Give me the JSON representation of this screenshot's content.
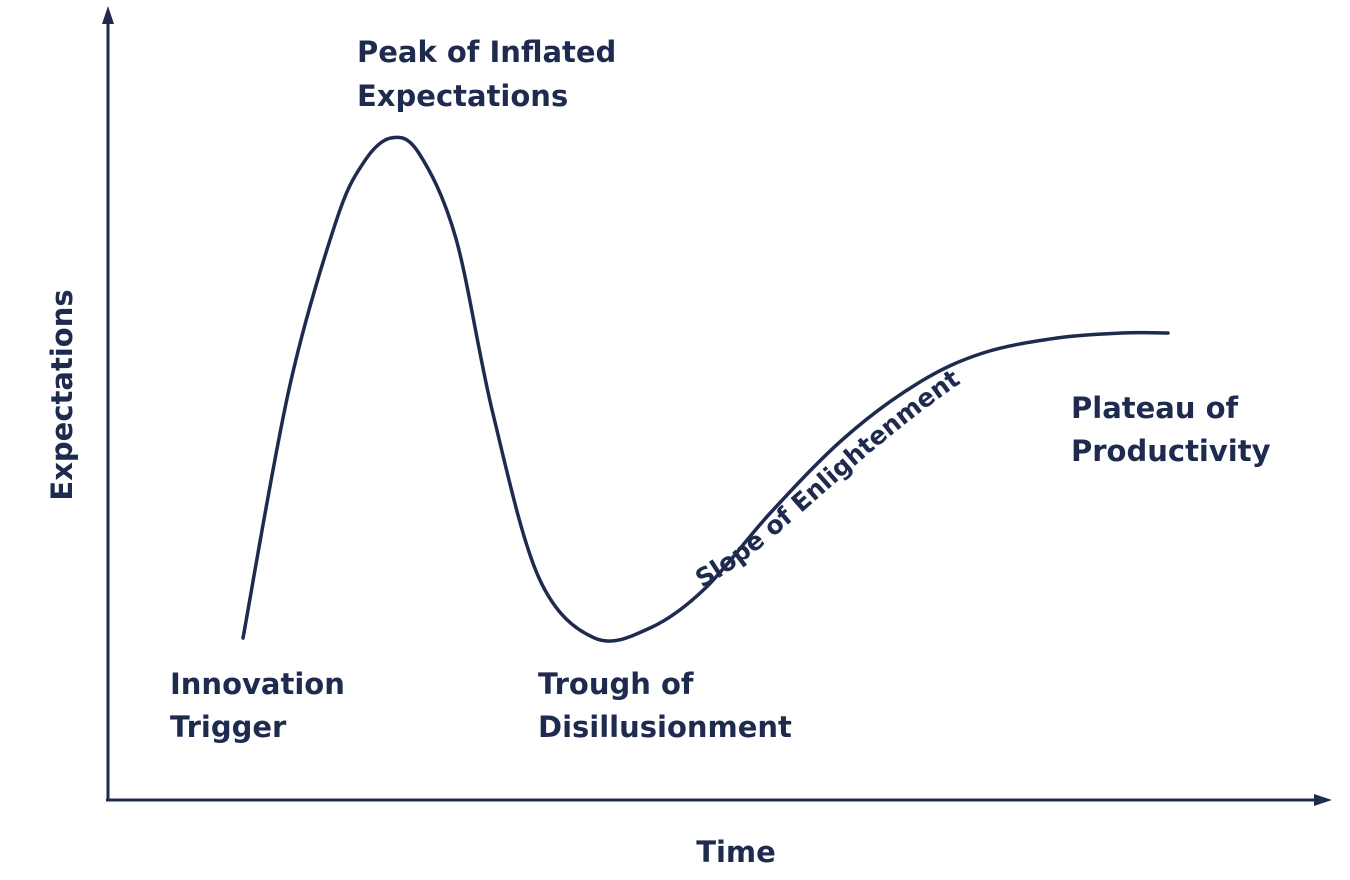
{
  "colors": {
    "ink": "#1e2b4f",
    "background": "#ffffff"
  },
  "chart_data": {
    "type": "line",
    "xlabel": "Time",
    "ylabel": "Expectations",
    "phases": [
      {
        "name": "Innovation Trigger",
        "label_lines": [
          "Innovation",
          "Trigger"
        ]
      },
      {
        "name": "Peak of Inflated Expectations",
        "label_lines": [
          "Peak of Inflated",
          "Expectations"
        ]
      },
      {
        "name": "Trough of Disillusionment",
        "label_lines": [
          "Trough of",
          "Disillusionment"
        ]
      },
      {
        "name": "Slope of Enlightenment",
        "label_lines": [
          "Slope of Enlightenment"
        ]
      },
      {
        "name": "Plateau of Productivity",
        "label_lines": [
          "Plateau of",
          "Productivity"
        ]
      }
    ],
    "curve": {
      "x": [
        0.0,
        0.05,
        0.1,
        0.13,
        0.16,
        0.19,
        0.23,
        0.27,
        0.32,
        0.38,
        0.44,
        0.5,
        0.57,
        0.65,
        0.73,
        0.8,
        0.88,
        0.95,
        1.0
      ],
      "y": [
        0.0,
        0.5,
        0.83,
        0.95,
        1.0,
        0.97,
        0.8,
        0.45,
        0.12,
        0.0,
        0.02,
        0.1,
        0.25,
        0.4,
        0.51,
        0.57,
        0.6,
        0.61,
        0.61
      ]
    }
  }
}
